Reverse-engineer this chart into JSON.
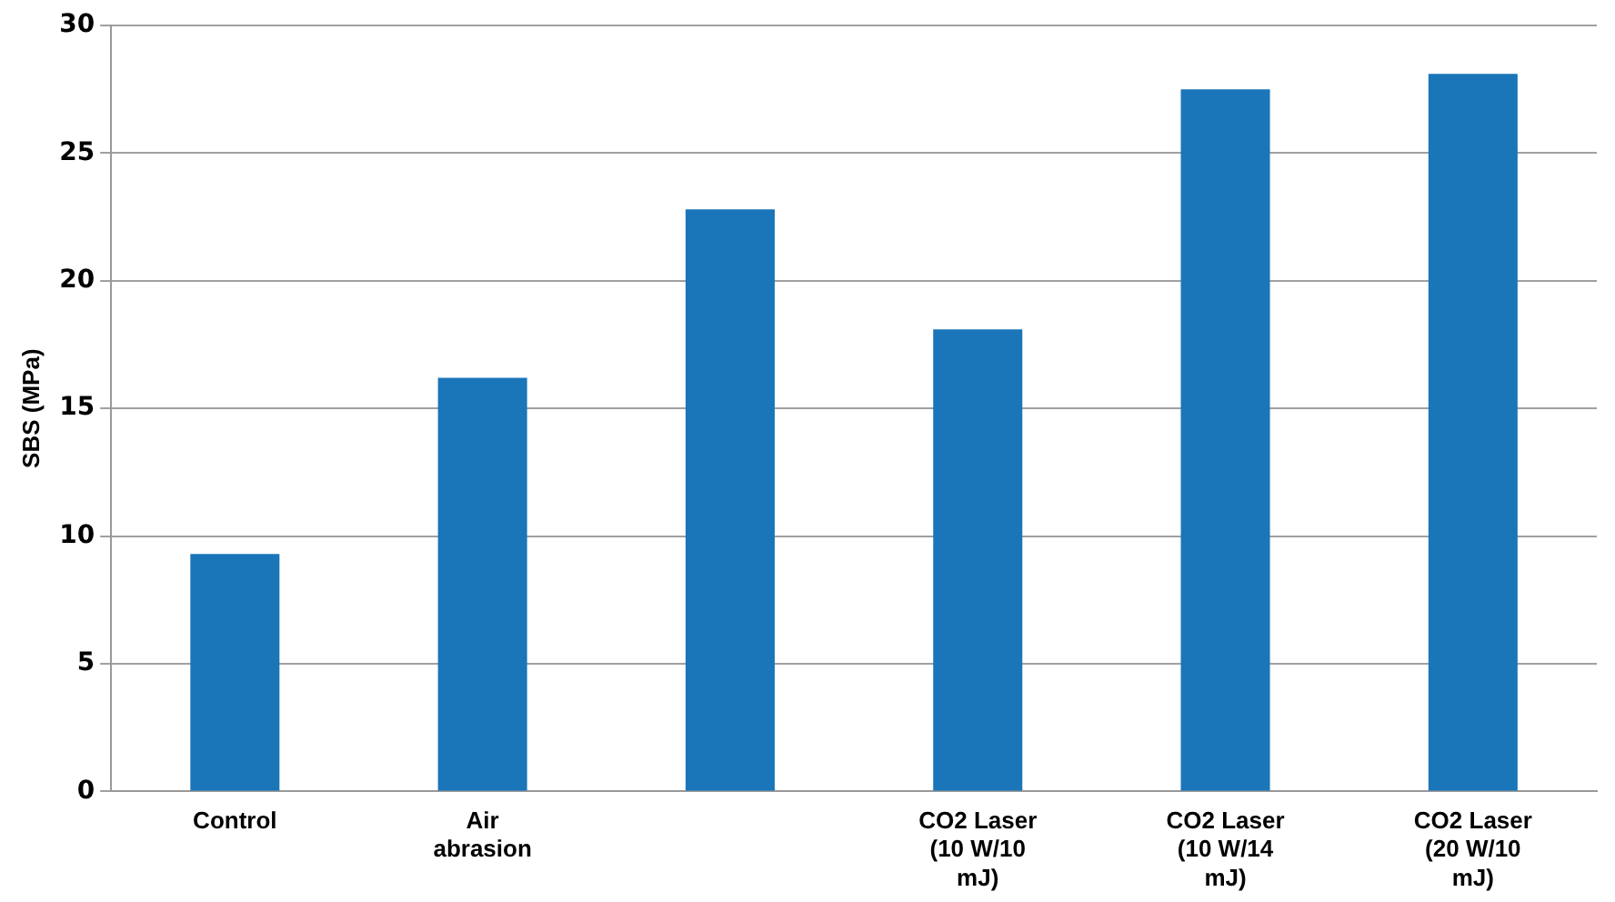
{
  "chart_data": {
    "type": "bar",
    "ylabel": "SBS (MPa)",
    "categories": [
      "Control",
      "Air abrasion",
      null,
      "CO2 Laser (10 W/10 mJ)",
      "CO2 Laser (10 W/14 mJ)",
      "CO2 Laser (20 W/10 mJ)"
    ],
    "values": [
      9.3,
      16.2,
      22.8,
      18.1,
      27.5,
      28.1
    ],
    "color": "#1b75b9",
    "ylim": [
      0,
      30
    ],
    "yticks": [
      0,
      5,
      10,
      15,
      20,
      25,
      30
    ],
    "grid": "y",
    "legend": false
  }
}
